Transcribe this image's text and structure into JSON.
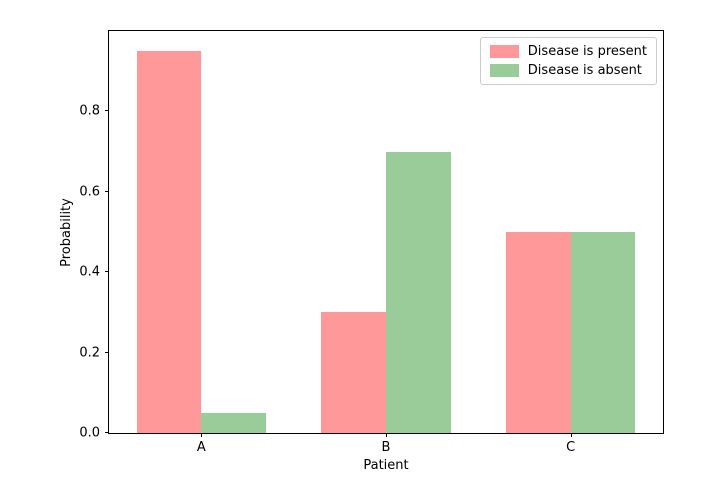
{
  "chart_data": {
    "type": "bar",
    "title": "",
    "xlabel": "Patient",
    "ylabel": "Probability",
    "categories": [
      "A",
      "B",
      "C"
    ],
    "series": [
      {
        "name": "Disease is present",
        "color": "#ff9999",
        "values": [
          0.95,
          0.3,
          0.5
        ]
      },
      {
        "name": "Disease is absent",
        "color": "#99cc99",
        "values": [
          0.05,
          0.7,
          0.5
        ]
      }
    ],
    "ylim": [
      0,
      1.0
    ],
    "yticks": [
      0.0,
      0.2,
      0.4,
      0.6,
      0.8
    ],
    "ytick_labels": [
      "0.0",
      "0.2",
      "0.4",
      "0.6",
      "0.8"
    ],
    "bar_width_fraction": 0.35,
    "grid": false,
    "legend_position": "upper right",
    "background_color": "#ffffff",
    "spine_color": "#000000",
    "legend_border_color": "#cccccc"
  }
}
